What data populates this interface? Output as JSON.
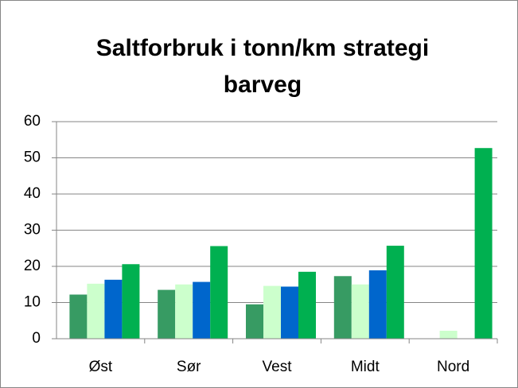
{
  "chart_data": {
    "type": "bar",
    "title": "Saltforbruk i tonn/km strategi barveg",
    "categories": [
      "Øst",
      "Sør",
      "Vest",
      "Midt",
      "Nord"
    ],
    "series": [
      {
        "color": "#379b63",
        "values": [
          12.2,
          13.5,
          9.5,
          17.3,
          null
        ]
      },
      {
        "color": "#ccffcc",
        "values": [
          15.2,
          15.0,
          14.6,
          15.0,
          2.2
        ]
      },
      {
        "color": "#0066cc",
        "values": [
          16.3,
          15.7,
          14.4,
          18.9,
          null
        ]
      },
      {
        "color": "#00b050",
        "values": [
          20.6,
          25.6,
          18.5,
          25.7,
          52.7
        ]
      }
    ],
    "ylim": [
      0,
      60
    ],
    "yticks": [
      0,
      10,
      20,
      30,
      40,
      50,
      60
    ],
    "grid": true
  }
}
